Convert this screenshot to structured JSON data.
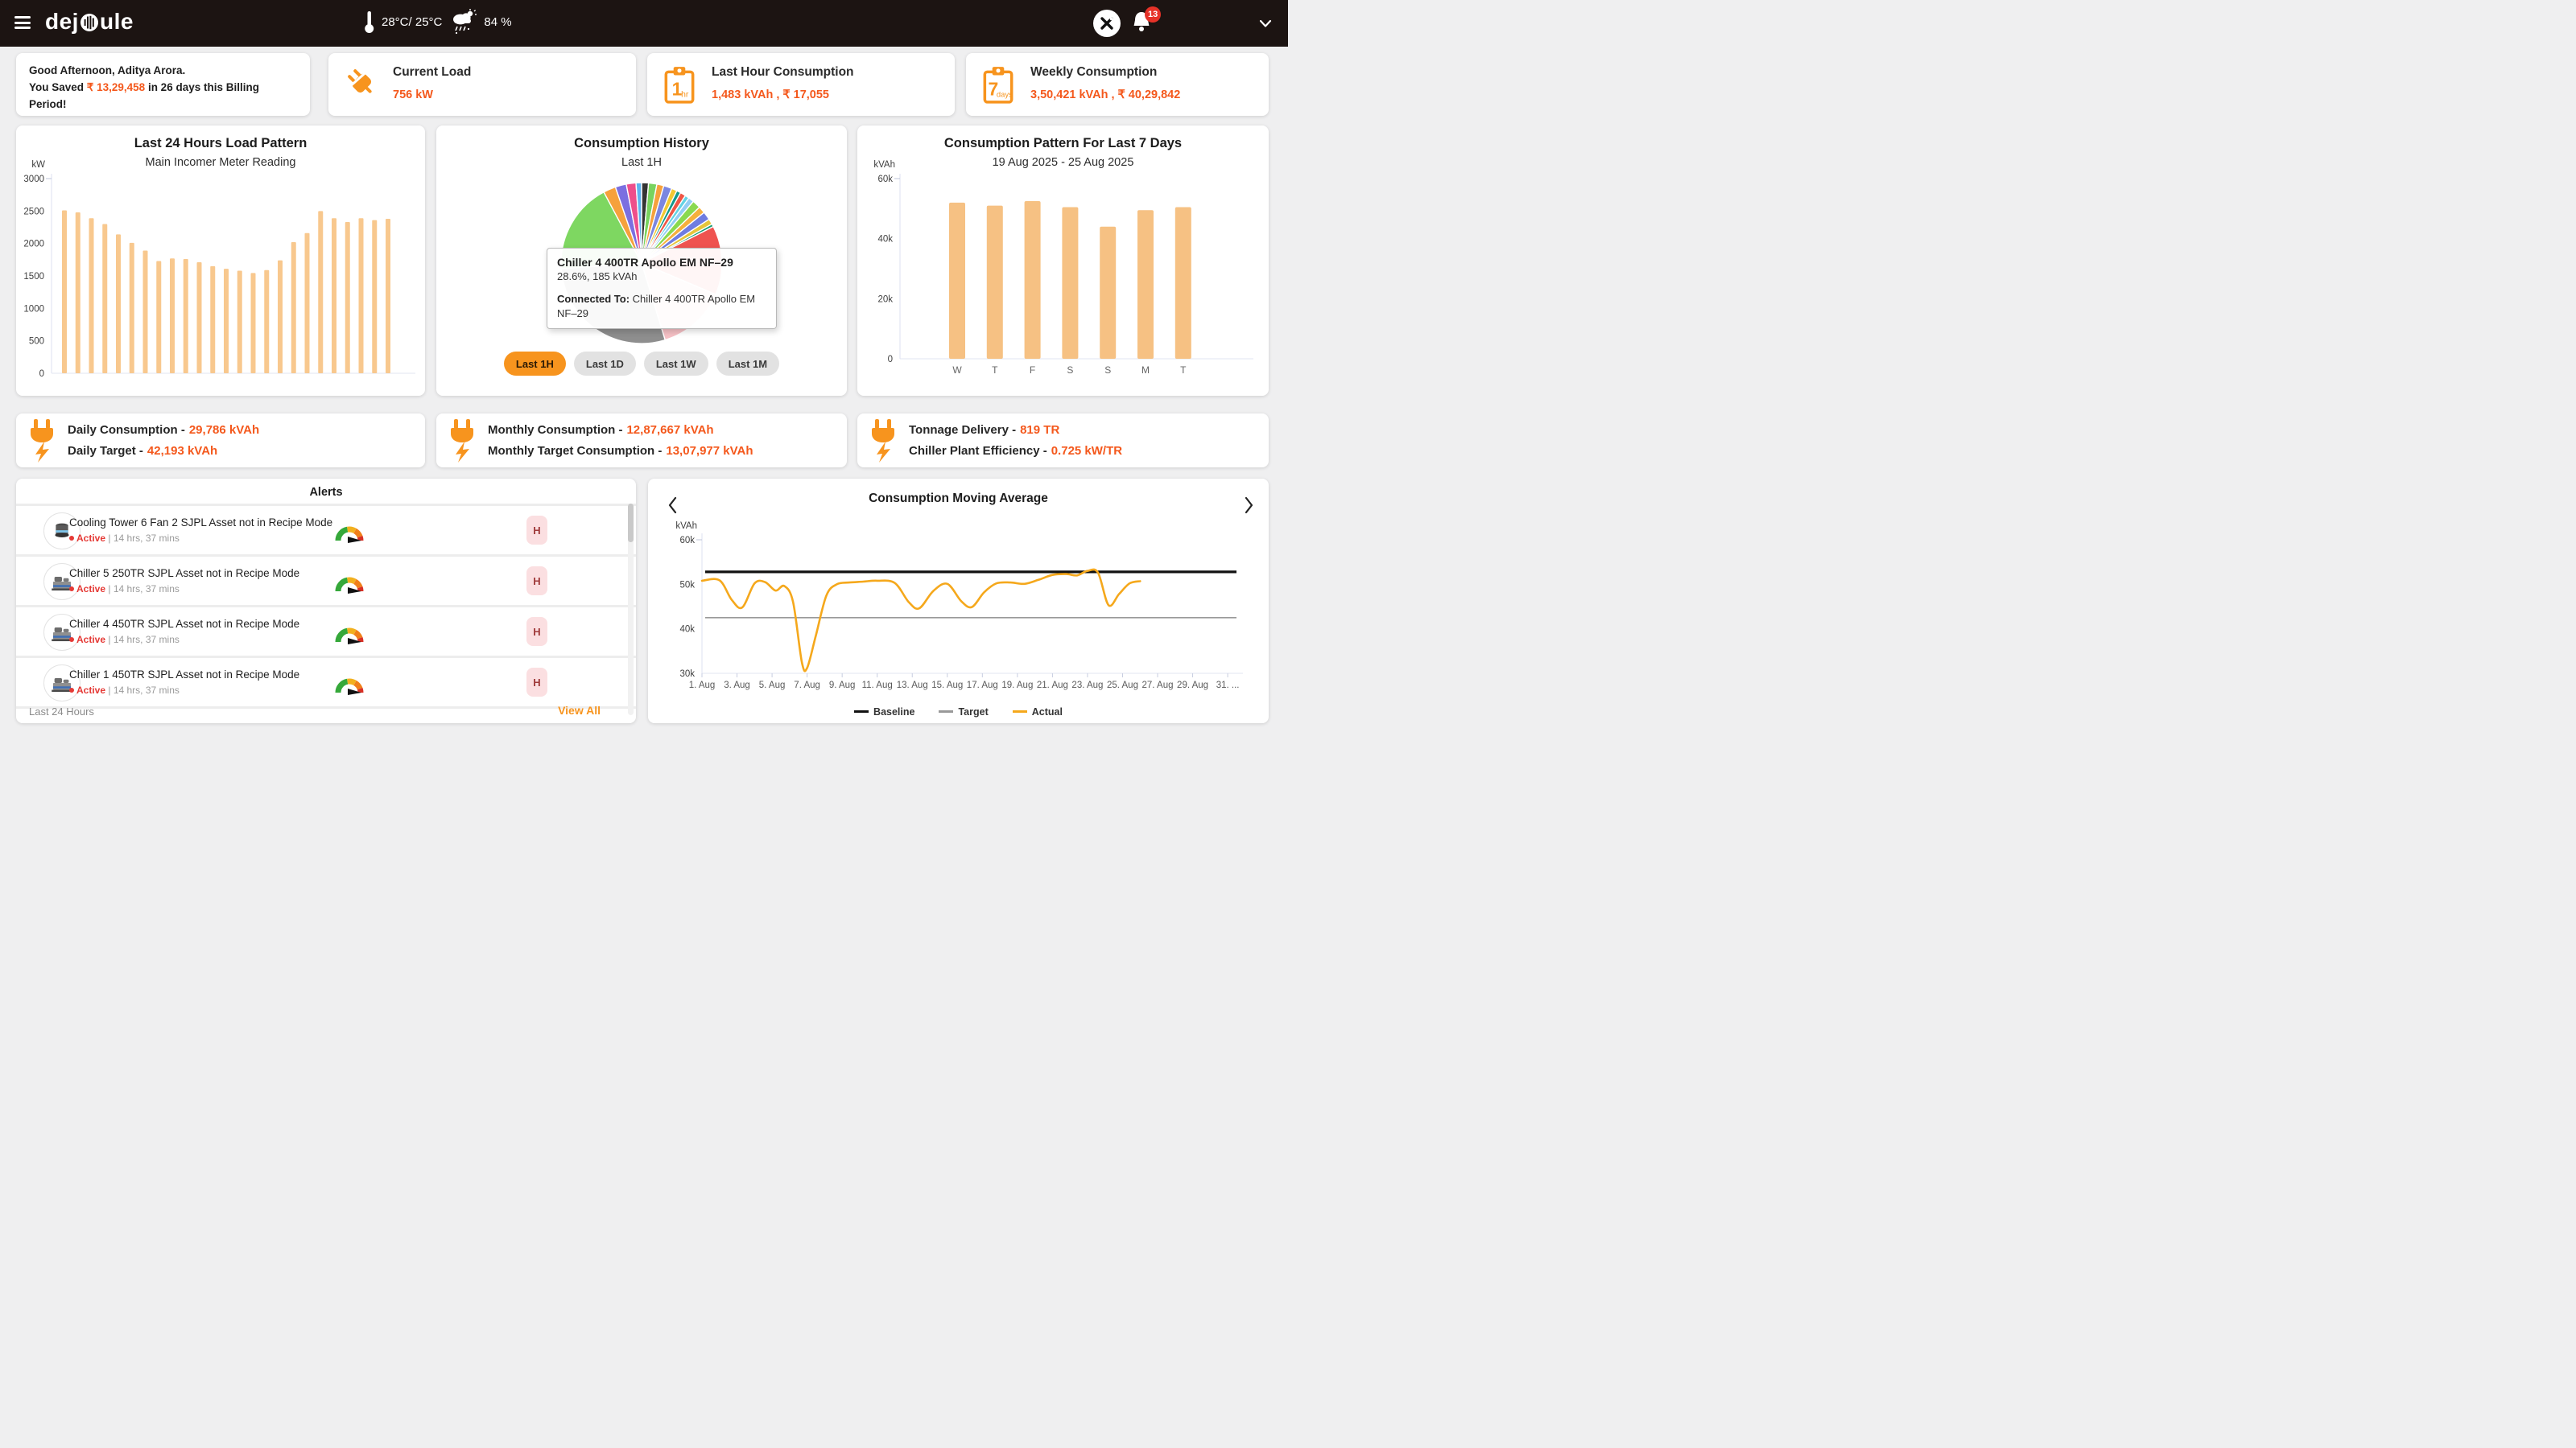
{
  "nav": {
    "logo_full": "dejoule",
    "logo_left": "dej",
    "logo_right": "ule",
    "temperature": "28°C/ 25°C",
    "humidity": "84 %",
    "notification_count": "13"
  },
  "top_cards": {
    "greeting": {
      "line1": "Good Afternoon, Aditya Arora.",
      "saved_prefix": "You Saved ",
      "saved_amount": "₹ 13,29,458",
      "saved_suffix": " in 26 days this Billing Period!"
    },
    "current_load": {
      "title": "Current Load",
      "value": "756 kW"
    },
    "last_hour": {
      "title": "Last Hour Consumption",
      "value": "1,483 kVAh , ₹ 17,055",
      "badge_big": "1",
      "badge_small": "hr"
    },
    "weekly": {
      "title": "Weekly Consumption",
      "value": "3,50,421 kVAh , ₹ 40,29,842",
      "badge_big": "7",
      "badge_small": "days"
    }
  },
  "stats": [
    {
      "rows": [
        {
          "label": "Daily Consumption -",
          "value": "29,786 kVAh"
        },
        {
          "label": "Daily Target -",
          "value": "42,193 kVAh"
        }
      ]
    },
    {
      "rows": [
        {
          "label": "Monthly Consumption -",
          "value": "12,87,667 kVAh"
        },
        {
          "label": "Monthly Target Consumption -",
          "value": "13,07,977 kVAh"
        }
      ]
    },
    {
      "rows": [
        {
          "label": "Tonnage Delivery -",
          "value": "819 TR"
        },
        {
          "label": "Chiller Plant Efficiency -",
          "value": "0.725 kW/TR"
        }
      ]
    }
  ],
  "alerts": {
    "title": "Alerts",
    "items": [
      {
        "name": "Cooling Tower 6 Fan 2 SJPL Asset not in Recipe Mode",
        "status": "Active",
        "duration": "14 hrs, 37 mins",
        "severity": "H",
        "icon": "cooling-tower"
      },
      {
        "name": "Chiller 5 250TR SJPL Asset not in Recipe Mode",
        "status": "Active",
        "duration": "14 hrs, 37 mins",
        "severity": "H",
        "icon": "chiller"
      },
      {
        "name": "Chiller 4 450TR SJPL Asset not in Recipe Mode",
        "status": "Active",
        "duration": "14 hrs, 37 mins",
        "severity": "H",
        "icon": "chiller"
      },
      {
        "name": "Chiller 1 450TR SJPL Asset not in Recipe Mode",
        "status": "Active",
        "duration": "14 hrs, 37 mins",
        "severity": "H",
        "icon": "chiller"
      }
    ],
    "footer_left": "Last 24 Hours",
    "footer_right": "View All"
  },
  "chart_data": [
    {
      "id": "load24",
      "type": "bar",
      "title": "Last 24 Hours Load Pattern",
      "subtitle": "Main Incomer Meter Reading",
      "ylabel": "kW",
      "ylim": [
        0,
        3000
      ],
      "yticks": [
        0,
        500,
        1000,
        1500,
        2000,
        2500,
        3000
      ],
      "values": [
        2510,
        2480,
        2390,
        2300,
        2140,
        2010,
        1890,
        1730,
        1770,
        1760,
        1710,
        1650,
        1610,
        1580,
        1545,
        1590,
        1740,
        2020,
        2160,
        2500,
        2390,
        2330,
        2390,
        2360,
        2380
      ],
      "bar_color": "#f8c88e"
    },
    {
      "id": "pie1h",
      "type": "pie",
      "title": "Consumption History",
      "subtitle": "Last 1H",
      "hovered": {
        "name": "Chiller 4 400TR Apollo EM NF–29",
        "detail": "28.6%, 185 kVAh",
        "connected_label": "Connected To:",
        "connected_value": "Chiller 4 400TR Apollo EM NF–29"
      },
      "slices": [
        {
          "deg": 5,
          "color": "#343434"
        },
        {
          "deg": 6,
          "color": "#79d35f"
        },
        {
          "deg": 5,
          "color": "#f6a13c"
        },
        {
          "deg": 6,
          "color": "#7b86e0"
        },
        {
          "deg": 4,
          "color": "#f2c832"
        },
        {
          "deg": 3,
          "color": "#12998c"
        },
        {
          "deg": 4,
          "color": "#f05545"
        },
        {
          "deg": 3,
          "color": "#63d3e4"
        },
        {
          "deg": 4,
          "color": "#93cdf4"
        },
        {
          "deg": 6,
          "color": "#8ad94f"
        },
        {
          "deg": 5,
          "color": "#f6b03c"
        },
        {
          "deg": 6,
          "color": "#6f7ce0"
        },
        {
          "deg": 4,
          "color": "#e7c53a"
        },
        {
          "deg": 2,
          "color": "#159b72"
        },
        {
          "deg": 50,
          "color": "#ef5350"
        },
        {
          "deg": 50,
          "color": "#f5c0c5"
        },
        {
          "deg": 103,
          "color": "#8e8e8e"
        },
        {
          "deg": 66,
          "color": "#7ed761"
        },
        {
          "deg": 9,
          "color": "#f6a13c"
        },
        {
          "deg": 8,
          "color": "#7b6fe0"
        },
        {
          "deg": 7,
          "color": "#ee4f8b"
        },
        {
          "deg": 4,
          "color": "#5fb4f0"
        }
      ],
      "buttons": [
        {
          "label": "Last 1H",
          "active": true
        },
        {
          "label": "Last 1D",
          "active": false
        },
        {
          "label": "Last 1W",
          "active": false
        },
        {
          "label": "Last 1M",
          "active": false
        }
      ]
    },
    {
      "id": "week7",
      "type": "bar",
      "title": "Consumption Pattern For Last 7 Days",
      "subtitle": "19 Aug 2025 - 25 Aug 2025",
      "ylabel": "kVAh",
      "ylim": [
        0,
        60000
      ],
      "ytick_values": [
        0,
        20000,
        40000,
        60000
      ],
      "ytick_labels": [
        "0",
        "20k",
        "40k",
        "60k"
      ],
      "categories": [
        "W",
        "T",
        "F",
        "S",
        "S",
        "M",
        "T"
      ],
      "values": [
        52000,
        51000,
        52500,
        50500,
        44000,
        49500,
        50500
      ],
      "bar_color": "#f6c183"
    },
    {
      "id": "ma",
      "type": "line",
      "title": "Consumption Moving Average",
      "ylabel": "kVAh",
      "ylim": [
        30000,
        60000
      ],
      "ytick_values": [
        30000,
        40000,
        50000,
        60000
      ],
      "ytick_labels": [
        "30k",
        "40k",
        "50k",
        "60k"
      ],
      "xticks": [
        "1. Aug",
        "3. Aug",
        "5. Aug",
        "7. Aug",
        "9. Aug",
        "11. Aug",
        "13. Aug",
        "15. Aug",
        "17. Aug",
        "19. Aug",
        "21. Aug",
        "23. Aug",
        "25. Aug",
        "27. Aug",
        "29. Aug",
        "31. ..."
      ],
      "series": [
        {
          "name": "Baseline",
          "type": "hline",
          "value": 52800,
          "color": "#111111"
        },
        {
          "name": "Target",
          "type": "hline",
          "value": 42500,
          "color": "#999999"
        },
        {
          "name": "Actual",
          "type": "line",
          "color": "#f5a81c",
          "points": [
            [
              1,
              50800
            ],
            [
              2,
              50900
            ],
            [
              2.7,
              46500
            ],
            [
              3.3,
              44800
            ],
            [
              4,
              50200
            ],
            [
              4.6,
              50500
            ],
            [
              5.2,
              48600
            ],
            [
              5.7,
              49600
            ],
            [
              6.2,
              46000
            ],
            [
              6.7,
              32500
            ],
            [
              7,
              31200
            ],
            [
              7.5,
              38500
            ],
            [
              8.1,
              47500
            ],
            [
              8.7,
              50000
            ],
            [
              9.4,
              50400
            ],
            [
              10.2,
              50600
            ],
            [
              11,
              50800
            ],
            [
              12,
              50300
            ],
            [
              12.8,
              46000
            ],
            [
              13.4,
              44600
            ],
            [
              14.2,
              48500
            ],
            [
              15,
              50100
            ],
            [
              15.8,
              46200
            ],
            [
              16.4,
              44900
            ],
            [
              17.1,
              48200
            ],
            [
              17.8,
              50200
            ],
            [
              18.6,
              50400
            ],
            [
              19.4,
              50100
            ],
            [
              20.2,
              51000
            ],
            [
              21,
              52100
            ],
            [
              21.8,
              52300
            ],
            [
              22.4,
              52000
            ],
            [
              23,
              53000
            ],
            [
              23.6,
              52600
            ],
            [
              24.2,
              45300
            ],
            [
              24.8,
              47800
            ],
            [
              25.4,
              50200
            ],
            [
              26,
              50700
            ]
          ]
        }
      ]
    }
  ]
}
